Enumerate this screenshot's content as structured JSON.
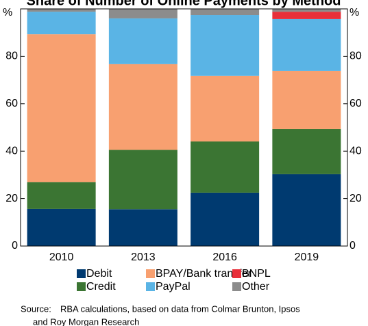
{
  "chart_data": {
    "type": "stacked_bar",
    "title": "Share of Number of Online Payments by Method",
    "y_unit": "%",
    "categories": [
      "2010",
      "2013",
      "2016",
      "2019"
    ],
    "series": [
      {
        "name": "Debit",
        "color": "#003a70",
        "values": [
          15.6,
          15.5,
          22.5,
          30.3
        ]
      },
      {
        "name": "Credit",
        "color": "#3b7533",
        "values": [
          11.4,
          25.1,
          21.6,
          19.0
        ]
      },
      {
        "name": "BPAY/Bank transfer",
        "color": "#f8a070",
        "values": [
          62.3,
          36.1,
          27.7,
          24.5
        ]
      },
      {
        "name": "PayPal",
        "color": "#5ab4e5",
        "values": [
          9.5,
          19.3,
          25.6,
          21.9
        ]
      },
      {
        "name": "BNPL",
        "color": "#e8303a",
        "values": [
          0,
          0,
          0,
          3.1
        ]
      },
      {
        "name": "Other",
        "color": "#8c8c8c",
        "values": [
          1.2,
          4.0,
          2.6,
          1.2
        ]
      }
    ],
    "ylim": [
      0,
      100
    ],
    "yticks": [
      0,
      20,
      40,
      60,
      80
    ],
    "source_label": "Source:",
    "source": [
      "RBA calculations, based on data from Colmar Brunton, Ipsos",
      "and Roy Morgan Research"
    ]
  }
}
